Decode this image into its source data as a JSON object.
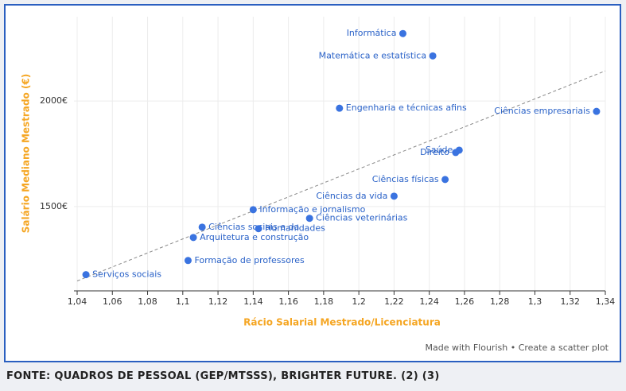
{
  "chart_data": {
    "type": "scatter",
    "x_label": "Rácio Salarial Mestrado/Licenciatura",
    "y_label": "Salário Mediano Mestrado (€)",
    "color": "#3a73e0",
    "series": [
      {
        "name": null,
        "color": "#3a73e0",
        "labels": [
          "Informática",
          "Matemática e estatística",
          "Engenharia e técnicas afins",
          "Ciências empresariais",
          "Saúde",
          "Direito",
          "Ciências físicas",
          "Ciências da vida",
          "Informação e jornalismo",
          "Ciências veterinárias",
          "Ciências sociais e da",
          "Humanidades",
          "Arquitetura e construção",
          "Formação de professores",
          "Serviços sociais"
        ],
        "x": [
          1.225,
          1.242,
          1.189,
          1.335,
          1.257,
          1.255,
          1.249,
          1.22,
          1.14,
          1.172,
          1.111,
          1.143,
          1.106,
          1.103,
          1.045
        ],
        "values": [
          2320,
          2214,
          1966,
          1951,
          1767,
          1756,
          1628,
          1549,
          1485,
          1444,
          1402,
          1395,
          1353,
          1244,
          1177
        ]
      }
    ],
    "trendline": {
      "x": [
        1.04,
        1.34
      ],
      "y": [
        1147,
        2143
      ],
      "color": "#888888"
    },
    "xlim": [
      1.04,
      1.34
    ],
    "ylim": [
      1100,
      2400
    ],
    "xticks": [
      {
        "value": 1.04,
        "label": "1,04"
      },
      {
        "value": 1.06,
        "label": "1,06"
      },
      {
        "value": 1.08,
        "label": "1,08"
      },
      {
        "value": 1.1,
        "label": "1,1"
      },
      {
        "value": 1.12,
        "label": "1,12"
      },
      {
        "value": 1.14,
        "label": "1,14"
      },
      {
        "value": 1.16,
        "label": "1,16"
      },
      {
        "value": 1.18,
        "label": "1,18"
      },
      {
        "value": 1.2,
        "label": "1,2"
      },
      {
        "value": 1.22,
        "label": "1,22"
      },
      {
        "value": 1.24,
        "label": "1,24"
      },
      {
        "value": 1.26,
        "label": "1,26"
      },
      {
        "value": 1.28,
        "label": "1,28"
      },
      {
        "value": 1.3,
        "label": "1,3"
      },
      {
        "value": 1.32,
        "label": "1,32"
      },
      {
        "value": 1.34,
        "label": "1,34"
      }
    ],
    "yticks": [
      {
        "value": 1500,
        "label": "1500€"
      },
      {
        "value": 2000,
        "label": "2000€"
      }
    ],
    "grid": true,
    "footer": "Made with Flourish • Create a scatter plot",
    "caption": "FONTE: QUADROS DE PESSOAL (GEP/MTSSS), BRIGHTER FUTURE. (2) (3)"
  }
}
